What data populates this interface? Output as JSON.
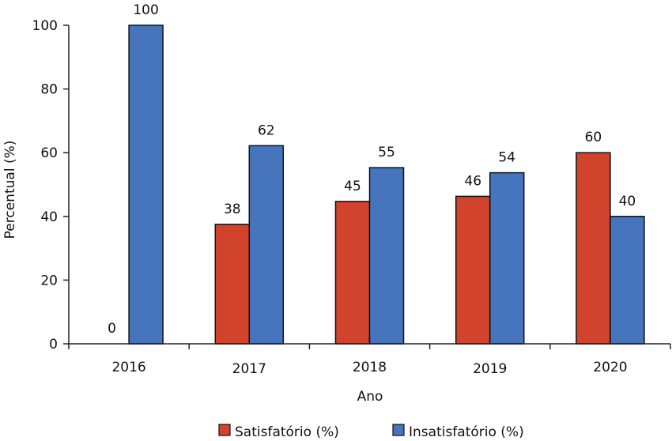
{
  "chart_data": {
    "type": "bar",
    "title": "",
    "xlabel": "Ano",
    "ylabel": "Percentual (%)",
    "ylim": [
      0,
      100
    ],
    "yticks": [
      0,
      20,
      40,
      60,
      80,
      100
    ],
    "categories": [
      "2016",
      "2017",
      "2018",
      "2019",
      "2020"
    ],
    "series": [
      {
        "name": "Satisfatório (%)",
        "color": "#d1432c",
        "values": [
          0,
          37.5,
          44.7,
          46.3,
          60
        ],
        "labels": [
          "0",
          "38",
          "45",
          "46",
          "60"
        ]
      },
      {
        "name": "Insatisfatório (%)",
        "color": "#4674bd",
        "values": [
          100,
          62.2,
          55.3,
          53.7,
          40
        ],
        "labels": [
          "100",
          "62",
          "55",
          "54",
          "40"
        ]
      }
    ],
    "legend": "bottom"
  }
}
